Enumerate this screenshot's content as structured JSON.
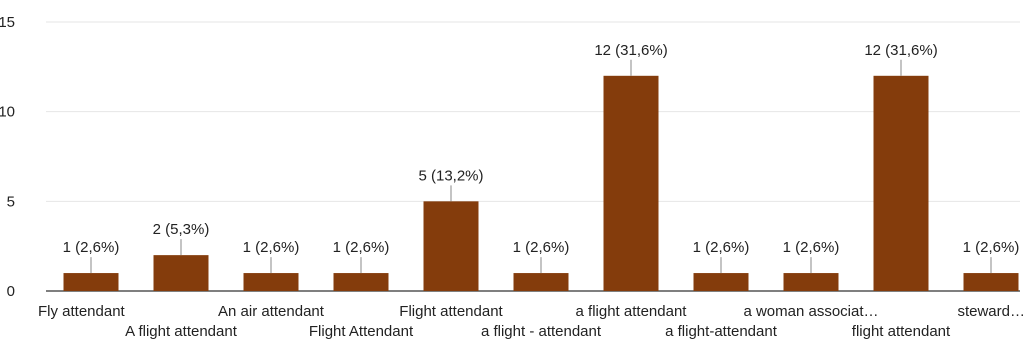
{
  "chart_data": {
    "type": "bar",
    "categories": [
      "Fly attendant",
      "A flight attendant",
      "An air attendant",
      "Flight Attendant",
      "Flight attendant",
      "a flight - attendant",
      "a flight attendant",
      "a flight-attendant",
      "a woman associat…",
      "flight attendant",
      "steward…"
    ],
    "values": [
      1,
      2,
      1,
      1,
      5,
      1,
      12,
      1,
      1,
      12,
      1
    ],
    "data_labels": [
      "1 (2,6%)",
      "2 (5,3%)",
      "1 (2,6%)",
      "1 (2,6%)",
      "5 (13,2%)",
      "1 (2,6%)",
      "12 (31,6%)",
      "1 (2,6%)",
      "1 (2,6%)",
      "12 (31,6%)",
      "1 (2,6%)"
    ],
    "yticks": [
      0,
      5,
      10,
      15
    ],
    "ylim": [
      0,
      15
    ],
    "grid": true,
    "bar_color": "#843c0c",
    "title": "",
    "xlabel": "",
    "ylabel": ""
  }
}
